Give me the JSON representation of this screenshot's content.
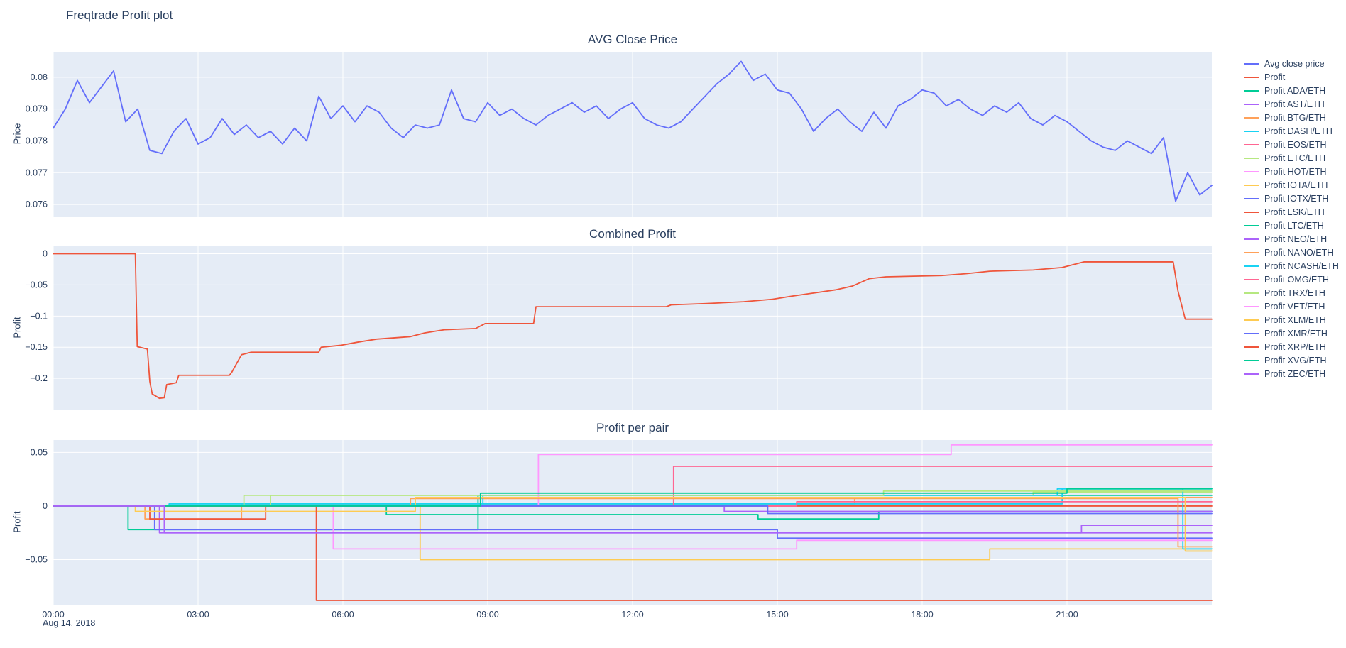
{
  "figure": {
    "title": "Freqtrade Profit plot",
    "background_color": "#ffffff",
    "panel_color": "#E5ECF6",
    "grid_color": "#ffffff",
    "font_color": "#2a3f5f"
  },
  "xaxis": {
    "range": [
      0,
      24
    ],
    "tick_values": [
      0,
      3,
      6,
      9,
      12,
      15,
      18,
      21
    ],
    "tick_labels": [
      "00:00",
      "03:00",
      "06:00",
      "09:00",
      "12:00",
      "15:00",
      "18:00",
      "21:00"
    ],
    "date_label": "Aug 14, 2018"
  },
  "chart_data": [
    {
      "type": "line",
      "title": "AVG Close Price",
      "ylabel": "Price",
      "ylim": [
        0.0756,
        0.0808
      ],
      "ytick_values": [
        0.076,
        0.077,
        0.078,
        0.079,
        0.08
      ],
      "ytick_labels": [
        "0.076",
        "0.077",
        "0.078",
        "0.079",
        "0.08"
      ],
      "series": [
        {
          "name": "Avg close price",
          "color": "#636EFA",
          "x_start": 0,
          "x_step": 0.25,
          "y": [
            0.0784,
            0.079,
            0.0799,
            0.0792,
            0.0797,
            0.0802,
            0.0786,
            0.079,
            0.0777,
            0.0776,
            0.0783,
            0.0787,
            0.0779,
            0.0781,
            0.0787,
            0.0782,
            0.0785,
            0.0781,
            0.0783,
            0.0779,
            0.0784,
            0.078,
            0.0794,
            0.0787,
            0.0791,
            0.0786,
            0.0791,
            0.0789,
            0.0784,
            0.0781,
            0.0785,
            0.0784,
            0.0785,
            0.0796,
            0.0787,
            0.0786,
            0.0792,
            0.0788,
            0.079,
            0.0787,
            0.0785,
            0.0788,
            0.079,
            0.0792,
            0.0789,
            0.0791,
            0.0787,
            0.079,
            0.0792,
            0.0787,
            0.0785,
            0.0784,
            0.0786,
            0.079,
            0.0794,
            0.0798,
            0.0801,
            0.0805,
            0.0799,
            0.0801,
            0.0796,
            0.0795,
            0.079,
            0.0783,
            0.0787,
            0.079,
            0.0786,
            0.0783,
            0.0789,
            0.0784,
            0.0791,
            0.0793,
            0.0796,
            0.0795,
            0.0791,
            0.0793,
            0.079,
            0.0788,
            0.0791,
            0.0789,
            0.0792,
            0.0787,
            0.0785,
            0.0788,
            0.0786,
            0.0783,
            0.078,
            0.0778,
            0.0777,
            0.078,
            0.0778,
            0.0776,
            0.0781,
            0.0761,
            0.077,
            0.0763,
            0.0766
          ]
        }
      ]
    },
    {
      "type": "line",
      "title": "Combined Profit",
      "ylabel": "Profit",
      "ylim": [
        -0.25,
        0.012
      ],
      "ytick_values": [
        0,
        -0.05,
        -0.1,
        -0.15,
        -0.2
      ],
      "ytick_labels": [
        "0",
        "−0.05",
        "−0.1",
        "−0.15",
        "−0.2"
      ],
      "series": [
        {
          "name": "Profit",
          "color": "#EF553B",
          "points": [
            [
              0,
              0
            ],
            [
              1.7,
              0
            ],
            [
              1.74,
              -0.149
            ],
            [
              1.95,
              -0.153
            ],
            [
              2.0,
              -0.205
            ],
            [
              2.05,
              -0.225
            ],
            [
              2.2,
              -0.232
            ],
            [
              2.3,
              -0.231
            ],
            [
              2.35,
              -0.21
            ],
            [
              2.55,
              -0.207
            ],
            [
              2.6,
              -0.195
            ],
            [
              3.65,
              -0.195
            ],
            [
              3.7,
              -0.19
            ],
            [
              3.9,
              -0.162
            ],
            [
              4.1,
              -0.158
            ],
            [
              5.5,
              -0.158
            ],
            [
              5.55,
              -0.15
            ],
            [
              5.95,
              -0.147
            ],
            [
              6.3,
              -0.142
            ],
            [
              6.7,
              -0.137
            ],
            [
              7.4,
              -0.133
            ],
            [
              7.7,
              -0.127
            ],
            [
              8.1,
              -0.122
            ],
            [
              8.75,
              -0.12
            ],
            [
              8.95,
              -0.112
            ],
            [
              9.95,
              -0.112
            ],
            [
              10.0,
              -0.085
            ],
            [
              12.7,
              -0.085
            ],
            [
              12.8,
              -0.082
            ],
            [
              13.5,
              -0.08
            ],
            [
              14.3,
              -0.077
            ],
            [
              14.9,
              -0.073
            ],
            [
              15.3,
              -0.068
            ],
            [
              15.75,
              -0.063
            ],
            [
              16.2,
              -0.058
            ],
            [
              16.55,
              -0.052
            ],
            [
              16.9,
              -0.04
            ],
            [
              17.25,
              -0.037
            ],
            [
              18.4,
              -0.035
            ],
            [
              18.9,
              -0.032
            ],
            [
              19.4,
              -0.028
            ],
            [
              20.3,
              -0.026
            ],
            [
              20.9,
              -0.022
            ],
            [
              21.35,
              -0.013
            ],
            [
              23.2,
              -0.013
            ],
            [
              23.3,
              -0.06
            ],
            [
              23.45,
              -0.105
            ],
            [
              24,
              -0.105
            ]
          ]
        }
      ]
    },
    {
      "type": "line",
      "title": "Profit per pair",
      "ylabel": "Profit",
      "ylim": [
        -0.092,
        0.0615
      ],
      "ytick_values": [
        0.05,
        0,
        -0.05
      ],
      "ytick_labels": [
        "0.05",
        "0",
        "−0.05"
      ],
      "series": [
        {
          "name": "Profit ADA/ETH",
          "color": "#00CC96",
          "points": [
            [
              0,
              0
            ],
            [
              1.55,
              0
            ],
            [
              1.55,
              -0.022
            ],
            [
              8.8,
              -0.022
            ],
            [
              8.8,
              0.01
            ],
            [
              24,
              0.01
            ]
          ]
        },
        {
          "name": "Profit AST/ETH",
          "color": "#AB63FA",
          "points": [
            [
              0,
              0
            ],
            [
              2.2,
              0
            ],
            [
              2.2,
              -0.025
            ],
            [
              24,
              -0.025
            ]
          ]
        },
        {
          "name": "Profit BTG/ETH",
          "color": "#FFA15A",
          "points": [
            [
              0,
              0
            ],
            [
              1.9,
              0
            ],
            [
              1.9,
              -0.012
            ],
            [
              3.9,
              -0.012
            ],
            [
              3.9,
              0.002
            ],
            [
              16.6,
              0.002
            ],
            [
              16.6,
              0.008
            ],
            [
              24,
              0.008
            ]
          ]
        },
        {
          "name": "Profit DASH/ETH",
          "color": "#19D3F3",
          "points": [
            [
              0,
              0
            ],
            [
              2.4,
              0
            ],
            [
              2.4,
              0.002
            ],
            [
              20.9,
              0.002
            ],
            [
              20.9,
              0.016
            ],
            [
              24,
              0.016
            ]
          ]
        },
        {
          "name": "Profit EOS/ETH",
          "color": "#FF6692",
          "points": [
            [
              0,
              0
            ],
            [
              12.85,
              0
            ],
            [
              12.85,
              0.037
            ],
            [
              24,
              0.037
            ]
          ]
        },
        {
          "name": "Profit ETC/ETH",
          "color": "#B6E880",
          "points": [
            [
              0,
              0
            ],
            [
              3.95,
              0
            ],
            [
              3.95,
              0.01
            ],
            [
              20.3,
              0.01
            ],
            [
              20.3,
              0.013
            ],
            [
              24,
              0.013
            ]
          ]
        },
        {
          "name": "Profit HOT/ETH",
          "color": "#FF97FF",
          "points": [
            [
              0,
              0
            ],
            [
              10.05,
              0
            ],
            [
              10.05,
              0.048
            ],
            [
              18.6,
              0.048
            ],
            [
              18.6,
              0.057
            ],
            [
              24,
              0.057
            ]
          ]
        },
        {
          "name": "Profit IOTA/ETH",
          "color": "#FECB52",
          "points": [
            [
              0,
              0
            ],
            [
              7.6,
              0
            ],
            [
              7.6,
              -0.05
            ],
            [
              19.4,
              -0.05
            ],
            [
              19.4,
              -0.04
            ],
            [
              24,
              -0.04
            ]
          ]
        },
        {
          "name": "Profit IOTX/ETH",
          "color": "#636EFA",
          "points": [
            [
              0,
              0
            ],
            [
              2.1,
              0
            ],
            [
              2.1,
              -0.022
            ],
            [
              15.0,
              -0.022
            ],
            [
              15.0,
              -0.03
            ],
            [
              24,
              -0.03
            ]
          ]
        },
        {
          "name": "Profit LSK/ETH",
          "color": "#EF553B",
          "points": [
            [
              0,
              0
            ],
            [
              2.0,
              0
            ],
            [
              2.0,
              -0.012
            ],
            [
              4.4,
              -0.012
            ],
            [
              4.4,
              0
            ],
            [
              24,
              0
            ]
          ]
        },
        {
          "name": "Profit LTC/ETH",
          "color": "#00CC96",
          "points": [
            [
              0,
              0
            ],
            [
              6.9,
              0
            ],
            [
              6.9,
              -0.008
            ],
            [
              14.6,
              -0.008
            ],
            [
              14.6,
              -0.012
            ],
            [
              17.1,
              -0.012
            ],
            [
              17.1,
              -0.005
            ],
            [
              24,
              -0.005
            ]
          ]
        },
        {
          "name": "Profit NEO/ETH",
          "color": "#AB63FA",
          "points": [
            [
              0,
              0
            ],
            [
              13.9,
              0
            ],
            [
              13.9,
              -0.005
            ],
            [
              24,
              -0.005
            ]
          ]
        },
        {
          "name": "Profit NANO/ETH",
          "color": "#FFA15A",
          "points": [
            [
              0,
              0
            ],
            [
              7.4,
              0
            ],
            [
              7.4,
              0.007
            ],
            [
              23.3,
              0.007
            ],
            [
              23.3,
              -0.038
            ],
            [
              24,
              -0.038
            ]
          ]
        },
        {
          "name": "Profit NCASH/ETH",
          "color": "#19D3F3",
          "points": [
            [
              0,
              0
            ],
            [
              8.9,
              0
            ],
            [
              8.9,
              0.01
            ],
            [
              20.8,
              0.01
            ],
            [
              20.8,
              0.016
            ],
            [
              23.4,
              0.016
            ],
            [
              23.4,
              -0.04
            ],
            [
              24,
              -0.04
            ]
          ]
        },
        {
          "name": "Profit OMG/ETH",
          "color": "#FF6692",
          "points": [
            [
              0,
              0
            ],
            [
              15.4,
              0
            ],
            [
              15.4,
              0.004
            ],
            [
              24,
              0.004
            ]
          ]
        },
        {
          "name": "Profit TRX/ETH",
          "color": "#B6E880",
          "points": [
            [
              0,
              0
            ],
            [
              4.5,
              0
            ],
            [
              4.5,
              0.01
            ],
            [
              17.2,
              0.01
            ],
            [
              17.2,
              0.014
            ],
            [
              24,
              0.014
            ]
          ]
        },
        {
          "name": "Profit VET/ETH",
          "color": "#FF97FF",
          "points": [
            [
              0,
              0
            ],
            [
              5.8,
              0
            ],
            [
              5.8,
              -0.04
            ],
            [
              15.4,
              -0.04
            ],
            [
              15.4,
              -0.032
            ],
            [
              24,
              -0.032
            ]
          ]
        },
        {
          "name": "Profit XLM/ETH",
          "color": "#FECB52",
          "points": [
            [
              0,
              0
            ],
            [
              1.7,
              0
            ],
            [
              1.7,
              -0.005
            ],
            [
              7.5,
              -0.005
            ],
            [
              7.5,
              0.008
            ],
            [
              23.45,
              0.008
            ],
            [
              23.45,
              -0.042
            ],
            [
              24,
              -0.042
            ]
          ]
        },
        {
          "name": "Profit XMR/ETH",
          "color": "#636EFA",
          "points": [
            [
              0,
              0
            ],
            [
              14.8,
              0
            ],
            [
              14.8,
              -0.007
            ],
            [
              24,
              -0.007
            ]
          ]
        },
        {
          "name": "Profit XRP/ETH",
          "color": "#EF553B",
          "points": [
            [
              0,
              0
            ],
            [
              5.45,
              0
            ],
            [
              5.45,
              -0.088
            ],
            [
              24,
              -0.088
            ]
          ]
        },
        {
          "name": "Profit XVG/ETH",
          "color": "#00CC96",
          "points": [
            [
              0,
              0
            ],
            [
              8.85,
              0
            ],
            [
              8.85,
              0.012
            ],
            [
              21.0,
              0.012
            ],
            [
              21.0,
              0.016
            ],
            [
              24,
              0.016
            ]
          ]
        },
        {
          "name": "Profit ZEC/ETH",
          "color": "#AB63FA",
          "points": [
            [
              0,
              0
            ],
            [
              2.3,
              0
            ],
            [
              2.3,
              -0.025
            ],
            [
              21.3,
              -0.025
            ],
            [
              21.3,
              -0.018
            ],
            [
              24,
              -0.018
            ]
          ]
        }
      ]
    }
  ]
}
